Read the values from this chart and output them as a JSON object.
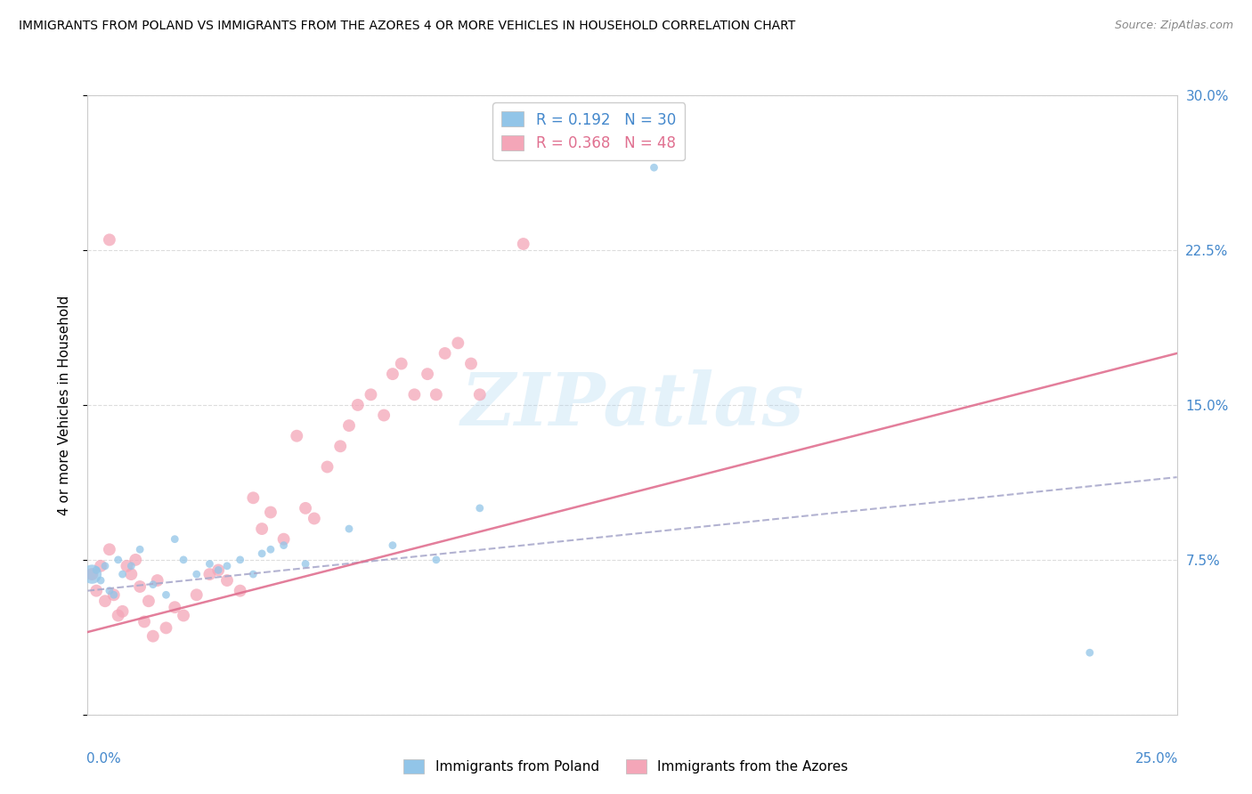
{
  "title": "IMMIGRANTS FROM POLAND VS IMMIGRANTS FROM THE AZORES 4 OR MORE VEHICLES IN HOUSEHOLD CORRELATION CHART",
  "source": "Source: ZipAtlas.com",
  "ylabel": "4 or more Vehicles in Household",
  "xlim": [
    0.0,
    0.25
  ],
  "ylim": [
    0.0,
    0.3
  ],
  "legend_poland": "Immigrants from Poland",
  "legend_azores": "Immigrants from the Azores",
  "R_poland": 0.192,
  "N_poland": 30,
  "R_azores": 0.368,
  "N_azores": 48,
  "color_poland": "#92c5e8",
  "color_azores": "#f4a6b8",
  "color_poland_line": "#aaaacc",
  "color_azores_line": "#e07090",
  "watermark": "ZIPatlas",
  "poland_x": [
    0.001,
    0.002,
    0.003,
    0.004,
    0.005,
    0.006,
    0.007,
    0.008,
    0.01,
    0.012,
    0.015,
    0.018,
    0.02,
    0.022,
    0.025,
    0.028,
    0.03,
    0.032,
    0.035,
    0.038,
    0.04,
    0.042,
    0.045,
    0.05,
    0.06,
    0.07,
    0.08,
    0.09,
    0.13,
    0.23
  ],
  "poland_y": [
    0.068,
    0.07,
    0.065,
    0.072,
    0.06,
    0.058,
    0.075,
    0.068,
    0.072,
    0.08,
    0.063,
    0.058,
    0.085,
    0.075,
    0.068,
    0.073,
    0.07,
    0.072,
    0.075,
    0.068,
    0.078,
    0.08,
    0.082,
    0.073,
    0.09,
    0.082,
    0.075,
    0.1,
    0.265,
    0.03
  ],
  "poland_size": [
    120,
    20,
    20,
    20,
    20,
    20,
    20,
    20,
    20,
    20,
    20,
    20,
    20,
    20,
    20,
    20,
    20,
    20,
    20,
    20,
    20,
    20,
    20,
    20,
    20,
    20,
    20,
    20,
    20,
    20
  ],
  "azores_x": [
    0.001,
    0.002,
    0.003,
    0.004,
    0.005,
    0.006,
    0.007,
    0.008,
    0.009,
    0.01,
    0.011,
    0.012,
    0.013,
    0.014,
    0.015,
    0.016,
    0.018,
    0.02,
    0.022,
    0.025,
    0.028,
    0.03,
    0.032,
    0.035,
    0.038,
    0.04,
    0.042,
    0.045,
    0.048,
    0.05,
    0.052,
    0.055,
    0.058,
    0.06,
    0.062,
    0.065,
    0.068,
    0.07,
    0.072,
    0.075,
    0.078,
    0.08,
    0.082,
    0.085,
    0.088,
    0.09,
    0.1,
    0.005
  ],
  "azores_y": [
    0.068,
    0.06,
    0.072,
    0.055,
    0.08,
    0.058,
    0.048,
    0.05,
    0.072,
    0.068,
    0.075,
    0.062,
    0.045,
    0.055,
    0.038,
    0.065,
    0.042,
    0.052,
    0.048,
    0.058,
    0.068,
    0.07,
    0.065,
    0.06,
    0.105,
    0.09,
    0.098,
    0.085,
    0.135,
    0.1,
    0.095,
    0.12,
    0.13,
    0.14,
    0.15,
    0.155,
    0.145,
    0.165,
    0.17,
    0.155,
    0.165,
    0.155,
    0.175,
    0.18,
    0.17,
    0.155,
    0.228,
    0.23
  ],
  "azores_size": [
    20,
    20,
    20,
    20,
    20,
    20,
    20,
    20,
    20,
    20,
    20,
    20,
    20,
    20,
    20,
    20,
    20,
    20,
    20,
    20,
    20,
    20,
    20,
    20,
    20,
    20,
    20,
    20,
    20,
    20,
    20,
    20,
    20,
    20,
    20,
    20,
    20,
    20,
    20,
    20,
    20,
    20,
    20,
    20,
    20,
    20,
    20,
    20
  ],
  "poland_trend_x": [
    0.0,
    0.25
  ],
  "poland_trend_y": [
    0.06,
    0.115
  ],
  "azores_trend_x": [
    0.0,
    0.25
  ],
  "azores_trend_y": [
    0.04,
    0.175
  ]
}
